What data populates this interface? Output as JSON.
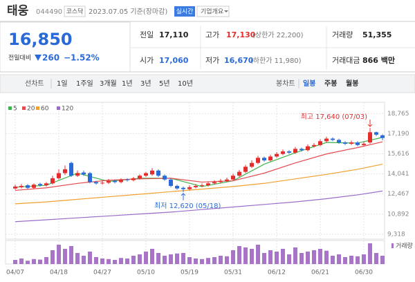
{
  "header": {
    "name": "태웅",
    "code": "044490",
    "market": "코스닥",
    "date": "2023.07.05 기준(장마감)",
    "realtime": "실시간",
    "overview": "기업개요"
  },
  "quote": {
    "price": "16,850",
    "change_label": "전일대비",
    "change": "260",
    "change_pct": "−1.52%",
    "fields": [
      {
        "label": "전일",
        "value": "17,110"
      },
      {
        "label": "고가",
        "value": "17,130",
        "note": "(상한가 22,200)"
      },
      {
        "label": "거래량",
        "value": "51,355"
      },
      {
        "label": "시가",
        "value": "17,060"
      },
      {
        "label": "저가",
        "value": "16,670",
        "note": "(하한가 11,980)"
      },
      {
        "label": "거래대금",
        "value": "866 백만"
      }
    ]
  },
  "tabs": {
    "line_chart": "선차트",
    "periods": [
      "1일",
      "1주일",
      "3개월",
      "1년",
      "3년",
      "5년",
      "10년"
    ],
    "candle_chart": "봉차트",
    "candle_periods": [
      "일봉",
      "주봉",
      "월봉"
    ]
  },
  "chart_data": {
    "type": "candlestick",
    "categories": [
      "04/07",
      null,
      null,
      null,
      null,
      null,
      null,
      "04/18",
      null,
      null,
      null,
      null,
      null,
      null,
      "04/27",
      null,
      null,
      null,
      null,
      null,
      null,
      "05/10",
      null,
      null,
      null,
      null,
      null,
      null,
      "05/19",
      null,
      null,
      null,
      null,
      null,
      null,
      "05/31",
      null,
      null,
      null,
      null,
      null,
      null,
      "06/12",
      null,
      null,
      null,
      null,
      null,
      null,
      "06/21",
      null,
      null,
      null,
      null,
      null,
      null,
      "06/30",
      null,
      null,
      null
    ],
    "opens": [
      12900,
      13000,
      13150,
      12950,
      13250,
      13150,
      13300,
      13700,
      14100,
      14900,
      13900,
      14150,
      14100,
      13400,
      13300,
      13350,
      13500,
      13400,
      13600,
      13550,
      13700,
      13900,
      14000,
      14300,
      13900,
      13600,
      13100,
      12950,
      12850,
      13000,
      13100,
      13150,
      13300,
      13400,
      13500,
      13600,
      13900,
      14200,
      14600,
      14900,
      15300,
      15100,
      15400,
      15600,
      15800,
      15700,
      16000,
      15900,
      16200,
      16300,
      16600,
      16800,
      16700,
      16500,
      16400,
      16500,
      16300,
      16500,
      17300,
      17060
    ],
    "highs": [
      13200,
      13250,
      13250,
      13300,
      13350,
      13400,
      13900,
      14400,
      14700,
      15000,
      14300,
      14300,
      14200,
      13500,
      13500,
      13650,
      13600,
      13700,
      13700,
      13800,
      14000,
      14200,
      14500,
      14400,
      14000,
      13700,
      13200,
      13050,
      13150,
      13250,
      13300,
      13450,
      13550,
      13650,
      13750,
      14050,
      14350,
      14750,
      15100,
      15450,
      15400,
      15550,
      15750,
      15950,
      15900,
      16150,
      16100,
      16350,
      16450,
      16750,
      16950,
      16900,
      16800,
      16600,
      16650,
      16600,
      16550,
      17640,
      17350,
      17130
    ],
    "lows": [
      12800,
      12900,
      12850,
      12850,
      13050,
      13050,
      13200,
      13600,
      13950,
      13800,
      13800,
      13900,
      13300,
      13200,
      13200,
      13250,
      13300,
      13300,
      13450,
      13450,
      13600,
      13800,
      13900,
      13800,
      13500,
      13000,
      12800,
      12620,
      12750,
      12900,
      13000,
      13050,
      13200,
      13300,
      13400,
      13500,
      13800,
      14100,
      14500,
      14800,
      15000,
      15000,
      15300,
      15500,
      15600,
      15600,
      15800,
      15800,
      16100,
      16200,
      16500,
      16600,
      16400,
      16300,
      16300,
      16200,
      16200,
      16400,
      17000,
      16670
    ],
    "closes": [
      13050,
      13100,
      12950,
      13200,
      13150,
      13300,
      13700,
      14100,
      14400,
      13900,
      14100,
      14000,
      13400,
      13300,
      13350,
      13500,
      13400,
      13600,
      13550,
      13700,
      13900,
      14100,
      14300,
      13900,
      13600,
      13100,
      12900,
      12850,
      13000,
      13100,
      13150,
      13300,
      13400,
      13500,
      13600,
      13900,
      14200,
      14600,
      14900,
      15300,
      15100,
      15400,
      15600,
      15800,
      15700,
      16000,
      15900,
      16200,
      16300,
      16600,
      16800,
      16700,
      16500,
      16400,
      16500,
      16300,
      16400,
      17300,
      17110,
      16850
    ],
    "up_color": "#e52c2c",
    "down_color": "#2a6ad8",
    "series": [
      {
        "name": "5",
        "color": "#3cb44b",
        "x": [
          0,
          5,
          10,
          15,
          20,
          25,
          30,
          35,
          40,
          45,
          50,
          55,
          59
        ],
        "values": [
          13000,
          13150,
          14100,
          13450,
          13700,
          13700,
          13050,
          13500,
          14800,
          15700,
          16500,
          16450,
          16900
        ]
      },
      {
        "name": "20",
        "color": "#e5484d",
        "x": [
          0,
          5,
          10,
          15,
          20,
          25,
          30,
          35,
          40,
          45,
          50,
          55,
          59
        ],
        "values": [
          12750,
          12950,
          13300,
          13550,
          13650,
          13700,
          13400,
          13500,
          14100,
          14900,
          15600,
          16100,
          16550
        ]
      },
      {
        "name": "60",
        "color": "#f0a030",
        "x": [
          0,
          5,
          10,
          15,
          20,
          25,
          30,
          35,
          40,
          45,
          50,
          55,
          59
        ],
        "values": [
          11700,
          11850,
          12050,
          12250,
          12450,
          12650,
          12850,
          13050,
          13300,
          13650,
          14000,
          14400,
          14800
        ]
      },
      {
        "name": "120",
        "color": "#9a6cc9",
        "x": [
          0,
          5,
          10,
          15,
          20,
          25,
          30,
          35,
          40,
          45,
          50,
          55,
          59
        ],
        "values": [
          10300,
          10450,
          10600,
          10750,
          10900,
          11050,
          11250,
          11450,
          11650,
          11850,
          12100,
          12400,
          12700
        ]
      }
    ],
    "volume": {
      "name": "거래량",
      "color": "#a874c8",
      "axis": "y2",
      "values": [
        150,
        200,
        120,
        180,
        160,
        250,
        500,
        700,
        550,
        650,
        400,
        300,
        450,
        250,
        200,
        180,
        150,
        220,
        200,
        300,
        350,
        450,
        550,
        400,
        300,
        350,
        380,
        400,
        250,
        200,
        180,
        220,
        250,
        300,
        280,
        500,
        650,
        600,
        550,
        700,
        400,
        500,
        450,
        550,
        350,
        600,
        400,
        450,
        500,
        550,
        480,
        300,
        350,
        250,
        300,
        280,
        350,
        750,
        400,
        300
      ]
    },
    "ylim": [
      8934,
      19644
    ],
    "yticks": [
      {
        "value": 18765,
        "label": "18,765"
      },
      {
        "value": 17190,
        "label": "17,190"
      },
      {
        "value": 15616,
        "label": "15,616"
      },
      {
        "value": 14041,
        "label": "14,041"
      },
      {
        "value": 12467,
        "label": "12,467"
      },
      {
        "value": 10892,
        "label": "10,892"
      },
      {
        "value": 9318,
        "label": "9,318"
      }
    ],
    "y2lim": [
      0,
      800
    ],
    "grid": true,
    "annotations": [
      {
        "text": "최고 17,640 (07/03)",
        "x": 57,
        "y": 17640,
        "color": "#e52c2c"
      },
      {
        "text": "최저 12,620 (05/18)",
        "x": 27,
        "y": 12620,
        "color": "#2a6ad8"
      }
    ]
  }
}
